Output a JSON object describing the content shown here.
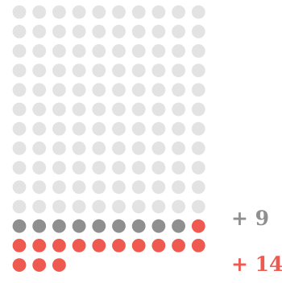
{
  "chart_data": {
    "type": "dot-grid",
    "grid": {
      "rows": 14,
      "columns": 10,
      "filled_from": "bottom"
    },
    "total_dots": 133,
    "groups": [
      {
        "count": 110,
        "color": "#e3e3e3"
      },
      {
        "count": 9,
        "color": "#8f8f8f",
        "label": "+ 9"
      },
      {
        "count": 14,
        "color": "#ee5a4f",
        "label": "+ 14"
      }
    ]
  },
  "colors": {
    "background": "#ffffff",
    "base": "#e3e3e3",
    "gray": "#8f8f8f",
    "red": "#ee5a4f"
  }
}
